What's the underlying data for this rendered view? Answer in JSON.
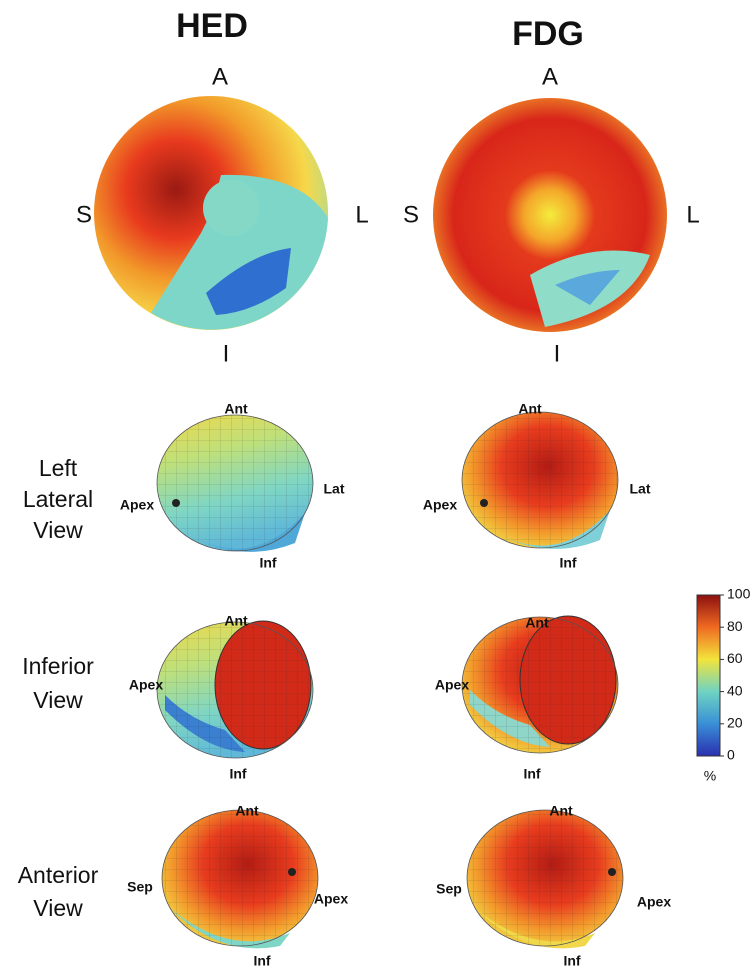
{
  "columns": [
    {
      "title": "HED",
      "polar_map": {
        "top": "A",
        "left": "S",
        "right": "L",
        "bottom": "I"
      },
      "views": [
        [
          "Ant",
          "Apex",
          "Lat",
          "Inf"
        ],
        [
          "Ant",
          "Apex",
          "Inf"
        ],
        [
          "Ant",
          "Sep",
          "Apex",
          "Inf"
        ]
      ]
    },
    {
      "title": "FDG",
      "polar_map": {
        "top": "A",
        "left": "S",
        "right": "L",
        "bottom": "I"
      },
      "views": [
        [
          "Ant",
          "Apex",
          "Lat",
          "Inf"
        ],
        [
          "Ant",
          "Apex",
          "Inf"
        ],
        [
          "Ant",
          "Sep",
          "Apex",
          "Inf"
        ]
      ]
    }
  ],
  "rows": [
    [
      "Left",
      "Lateral",
      "View"
    ],
    [
      "Inferior",
      "View"
    ],
    [
      "Anterior",
      "View"
    ]
  ],
  "colorbar": {
    "lim": [
      0,
      100
    ],
    "ticks": [
      0,
      20,
      40,
      60,
      80,
      100
    ],
    "unit": "%"
  }
}
